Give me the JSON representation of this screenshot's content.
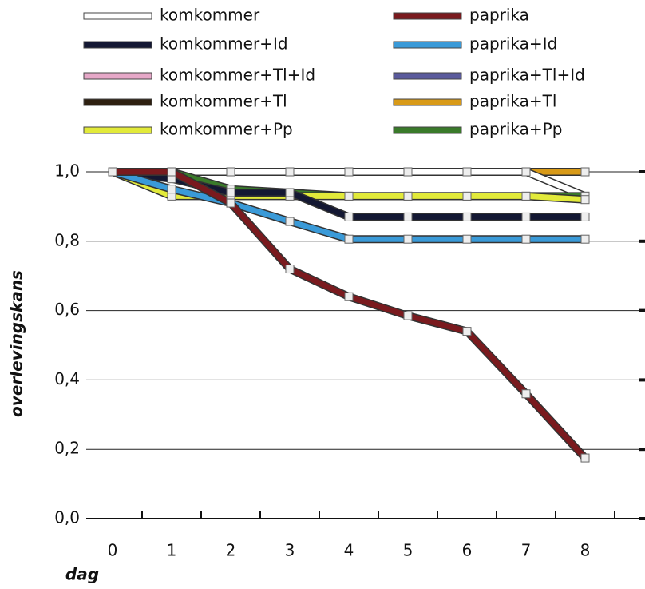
{
  "chart_data": {
    "type": "line",
    "x_label": "dag",
    "y_label": "overlevingskans",
    "x": [
      0,
      1,
      2,
      3,
      4,
      5,
      6,
      7,
      8
    ],
    "xlim": [
      -0.45,
      9
    ],
    "xticks": [
      0,
      1,
      2,
      3,
      4,
      5,
      6,
      7,
      8
    ],
    "ylim": [
      0,
      1.0
    ],
    "yticks": [
      {
        "value": 0,
        "label": "0,0"
      },
      {
        "value": 0.2,
        "label": "0,2"
      },
      {
        "value": 0.4,
        "label": "0,4"
      },
      {
        "value": 0.6,
        "label": "0,6"
      },
      {
        "value": 0.8,
        "label": "0,8"
      },
      {
        "value": 1.0,
        "label": "1,0"
      }
    ],
    "grid": true,
    "series": [
      {
        "name": "komkommer",
        "color": "#ffffff",
        "values": [
          1,
          1,
          1,
          1,
          1,
          1,
          1,
          1,
          0.93
        ]
      },
      {
        "name": "komkommer+Id",
        "color": "#141833",
        "values": [
          1,
          0.98,
          0.94,
          0.94,
          0.87,
          0.87,
          0.87,
          0.87,
          0.87
        ]
      },
      {
        "name": "komkommer+Tl+Id",
        "color": "#e6a8c8",
        "values": [
          1,
          1,
          1,
          1,
          1,
          1,
          1,
          1,
          1
        ]
      },
      {
        "name": "komkommer+Tl",
        "color": "#2e2010",
        "values": [
          1,
          1,
          1,
          1,
          1,
          1,
          1,
          1,
          1
        ]
      },
      {
        "name": "komkommer+Pp",
        "color": "#e2ea3a",
        "values": [
          1,
          0.93,
          0.93,
          0.93,
          0.93,
          0.93,
          0.93,
          0.93,
          0.92
        ]
      },
      {
        "name": "paprika",
        "color": "#7a1a1e",
        "values": [
          1,
          1,
          0.91,
          0.72,
          0.64,
          0.585,
          0.54,
          0.36,
          0.175
        ]
      },
      {
        "name": "paprika+Id",
        "color": "#3a9ad8",
        "values": [
          1,
          0.95,
          0.91,
          0.857,
          0.806,
          0.806,
          0.806,
          0.806,
          0.806
        ]
      },
      {
        "name": "paprika+Tl+Id",
        "color": "#5a5a9c",
        "values": [
          1,
          1,
          1,
          1,
          1,
          1,
          1,
          1,
          1
        ]
      },
      {
        "name": "paprika+Tl",
        "color": "#d89a18",
        "values": [
          1,
          1,
          1,
          1,
          1,
          1,
          1,
          1,
          1
        ]
      },
      {
        "name": "paprika+Pp",
        "color": "#3a7a2a",
        "values": [
          1,
          1,
          0.95,
          0.94,
          0.93,
          0.93,
          0.93,
          0.93,
          0.93
        ]
      }
    ]
  }
}
